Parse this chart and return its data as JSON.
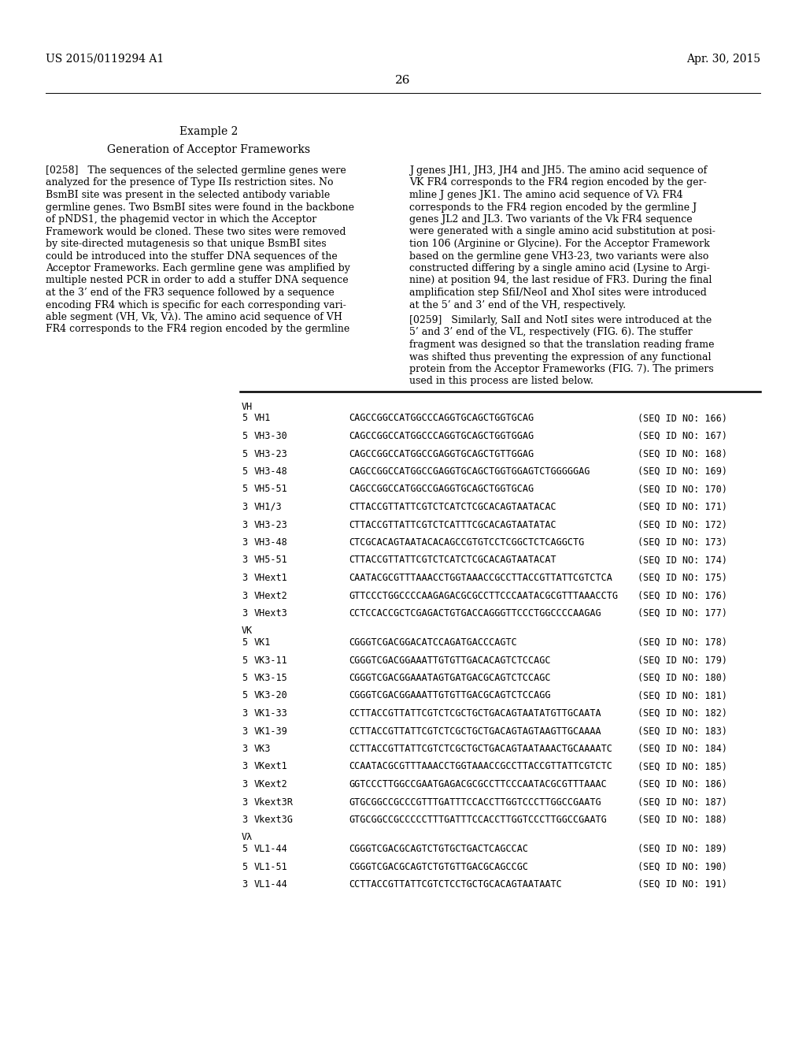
{
  "page_number": "26",
  "patent_number": "US 2015/0119294 A1",
  "patent_date": "Apr. 30, 2015",
  "background_color": "#ffffff",
  "text_color": "#000000",
  "example_title": "Example 2",
  "example_subtitle": "Generation of Acceptor Frameworks",
  "table_entries": [
    {
      "group": "VH",
      "dir": "",
      "name": "",
      "sequence": "",
      "seq_id": ""
    },
    {
      "group": "",
      "dir": "5",
      "name": "VH1",
      "sequence": "CAGCCGGCCATGGCCCAGGTGCAGCTGGTGCAG",
      "seq_id": "166"
    },
    {
      "group": "",
      "dir": "5",
      "name": "VH3-30",
      "sequence": "CAGCCGGCCATGGCCCAGGTGCAGCTGGTGGAG",
      "seq_id": "167"
    },
    {
      "group": "",
      "dir": "5",
      "name": "VH3-23",
      "sequence": "CAGCCGGCCATGGCCGAGGTGCAGCTGTTGGAG",
      "seq_id": "168"
    },
    {
      "group": "",
      "dir": "5",
      "name": "VH3-48",
      "sequence": "CAGCCGGCCATGGCCGAGGTGCAGCTGGTGGAGTCTGGGGGAG",
      "seq_id": "169"
    },
    {
      "group": "",
      "dir": "5",
      "name": "VH5-51",
      "sequence": "CAGCCGGCCATGGCCGAGGTGCAGCTGGTGCAG",
      "seq_id": "170"
    },
    {
      "group": "",
      "dir": "3",
      "name": "VH1/3",
      "sequence": "CTTACCGTTATTCGTCTCATCTCGCACAGTAATACAC",
      "seq_id": "171"
    },
    {
      "group": "",
      "dir": "3",
      "name": "VH3-23",
      "sequence": "CTTACCGTTATTCGTCTCATTTCGCACAGTAATATAC",
      "seq_id": "172"
    },
    {
      "group": "",
      "dir": "3",
      "name": "VH3-48",
      "sequence": "CTCGCACAGTAATACACAGCCGTGTCCTCGGCTCTCAGGCTG",
      "seq_id": "173"
    },
    {
      "group": "",
      "dir": "3",
      "name": "VH5-51",
      "sequence": "CTTACCGTTATTCGTCTCATCTCGCACAGTAATACAT",
      "seq_id": "174"
    },
    {
      "group": "",
      "dir": "3",
      "name": "VHext1",
      "sequence": "CAATACGCGTTTAAACCTGGTAAACCGCCTTACCGTTATTCGTCTCA",
      "seq_id": "175"
    },
    {
      "group": "",
      "dir": "3",
      "name": "VHext2",
      "sequence": "GTTCCCTGGCCCCAAGAGACGCGCCTTCCCAATACGCGTTTAAACCTG",
      "seq_id": "176"
    },
    {
      "group": "",
      "dir": "3",
      "name": "VHext3",
      "sequence": "CCTCCACCGCTCGAGACTGTGACCAGGGTTCCCTGGCCCCAAGAG",
      "seq_id": "177"
    },
    {
      "group": "VK",
      "dir": "",
      "name": "",
      "sequence": "",
      "seq_id": ""
    },
    {
      "group": "",
      "dir": "5",
      "name": "VK1",
      "sequence": "CGGGTCGACGGACATCCAGATGACCCAGTC",
      "seq_id": "178"
    },
    {
      "group": "",
      "dir": "5",
      "name": "VK3-11",
      "sequence": "CGGGTCGACGGAAATTGTGTTGACACAGTCTCCAGC",
      "seq_id": "179"
    },
    {
      "group": "",
      "dir": "5",
      "name": "VK3-15",
      "sequence": "CGGGTCGACGGAAATAGTGATGACGCAGTCTCCAGC",
      "seq_id": "180"
    },
    {
      "group": "",
      "dir": "5",
      "name": "VK3-20",
      "sequence": "CGGGTCGACGGAAATTGTGTTGACGCAGTCTCCAGG",
      "seq_id": "181"
    },
    {
      "group": "",
      "dir": "3",
      "name": "VK1-33",
      "sequence": "CCTTACCGTTATTCGTCTCGCTGCTGACAGTAATATGTTGCAATA",
      "seq_id": "182"
    },
    {
      "group": "",
      "dir": "3",
      "name": "VK1-39",
      "sequence": "CCTTACCGTTATTCGTCTCGCTGCTGACAGTAGTAAGTTGCAAAA",
      "seq_id": "183"
    },
    {
      "group": "",
      "dir": "3",
      "name": "VK3",
      "sequence": "CCTTACCGTTATTCGTCTCGCTGCTGACAGTAATAAACTGCAAAATC",
      "seq_id": "184"
    },
    {
      "group": "",
      "dir": "3",
      "name": "VKext1",
      "sequence": "CCAATACGCGTTTAAACCTGGTAAACCGCCTTACCGTTATTCGTCTC",
      "seq_id": "185"
    },
    {
      "group": "",
      "dir": "3",
      "name": "VKext2",
      "sequence": "GGTCCCTTGGCCGAATGAGACGCGCCTTCCCAATACGCGTTTAAAC",
      "seq_id": "186"
    },
    {
      "group": "",
      "dir": "3",
      "name": "Vkext3R",
      "sequence": "GTGCGGCCGCCCGTTTGATTTCCACCTTGGTCCCTTGGCCGAATG",
      "seq_id": "187"
    },
    {
      "group": "",
      "dir": "3",
      "name": "Vkext3G",
      "sequence": "GTGCGGCCGCCCCCTTTGATTTCCACCTTGGTCCCTTGGCCGAATG",
      "seq_id": "188"
    },
    {
      "group": "Vλ",
      "dir": "",
      "name": "",
      "sequence": "",
      "seq_id": ""
    },
    {
      "group": "",
      "dir": "5",
      "name": "VL1-44",
      "sequence": "CGGGTCGACGCAGTCTGTGCTGACTCAGCCAC",
      "seq_id": "189"
    },
    {
      "group": "",
      "dir": "5",
      "name": "VL1-51",
      "sequence": "CGGGTCGACGCAGTCTGTGTTGACGCAGCCGC",
      "seq_id": "190"
    },
    {
      "group": "",
      "dir": "3",
      "name": "VL1-44",
      "sequence": "CCTTACCGTTATTCGTCTCCTGCTGCACAGTAATAATC",
      "seq_id": "191"
    }
  ]
}
